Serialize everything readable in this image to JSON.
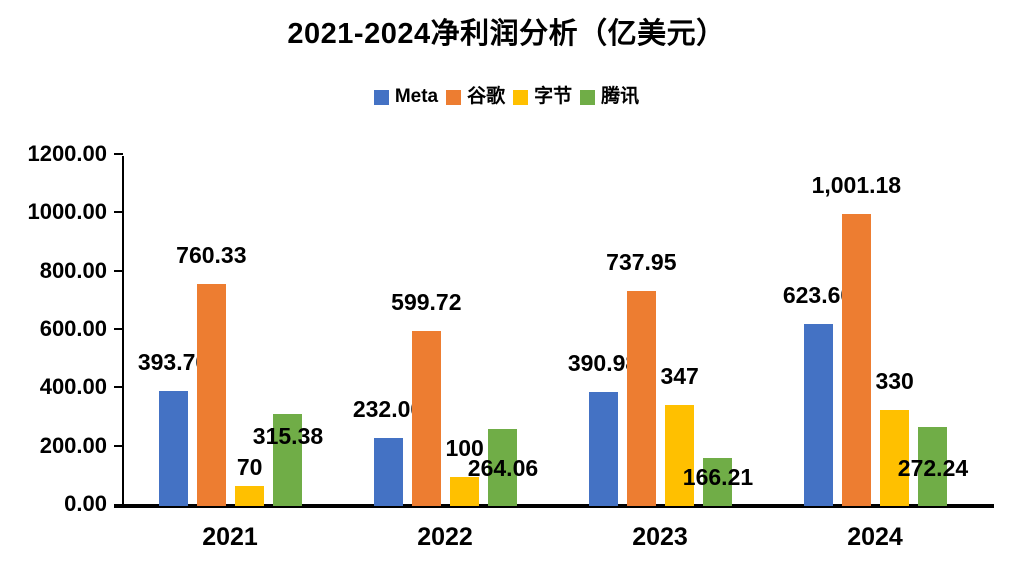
{
  "title": "2021-2024净利润分析（亿美元）",
  "chart_data": {
    "type": "bar",
    "title": "2021-2024净利润分析（亿美元）",
    "categories": [
      "2021",
      "2022",
      "2023",
      "2024"
    ],
    "series": [
      {
        "name": "Meta",
        "slug": "meta",
        "color": "#4472C4",
        "values": [
          393.7,
          232.0,
          390.98,
          623.6
        ],
        "labels": [
          "393.70",
          "232.00",
          "390.98",
          "623.60"
        ],
        "label_dy": [
          0,
          0,
          0,
          0
        ]
      },
      {
        "name": "谷歌",
        "slug": "google",
        "color": "#ED7D31",
        "values": [
          760.33,
          599.72,
          737.95,
          1001.18
        ],
        "labels": [
          "760.33",
          "599.72",
          "737.95",
          "1,001.18"
        ],
        "label_dy": [
          0,
          0,
          0,
          0
        ]
      },
      {
        "name": "字节",
        "slug": "bytedance",
        "color": "#FFC000",
        "values": [
          70,
          100,
          347,
          330
        ],
        "labels": [
          "70",
          "100",
          "347",
          "330"
        ],
        "label_dy": [
          10,
          0,
          0,
          0
        ]
      },
      {
        "name": "腾讯",
        "slug": "tencent",
        "color": "#70AD47",
        "values": [
          315.38,
          264.06,
          166.21,
          272.24
        ],
        "labels": [
          "315.38",
          "264.06",
          "166.21",
          "272.24"
        ],
        "label_dy": [
          51,
          68,
          48,
          70
        ]
      }
    ],
    "ylim": [
      0,
      1200
    ],
    "ytick_step": 200,
    "ytick_labels": [
      "0.00",
      "200.00",
      "400.00",
      "600.00",
      "800.00",
      "1000.00",
      "1200.00"
    ],
    "grid": false,
    "legend_position": "top",
    "xlabel": "",
    "ylabel": "",
    "axis_color": "#000000",
    "text_color": "#000000",
    "background": "#FFFFFF"
  }
}
